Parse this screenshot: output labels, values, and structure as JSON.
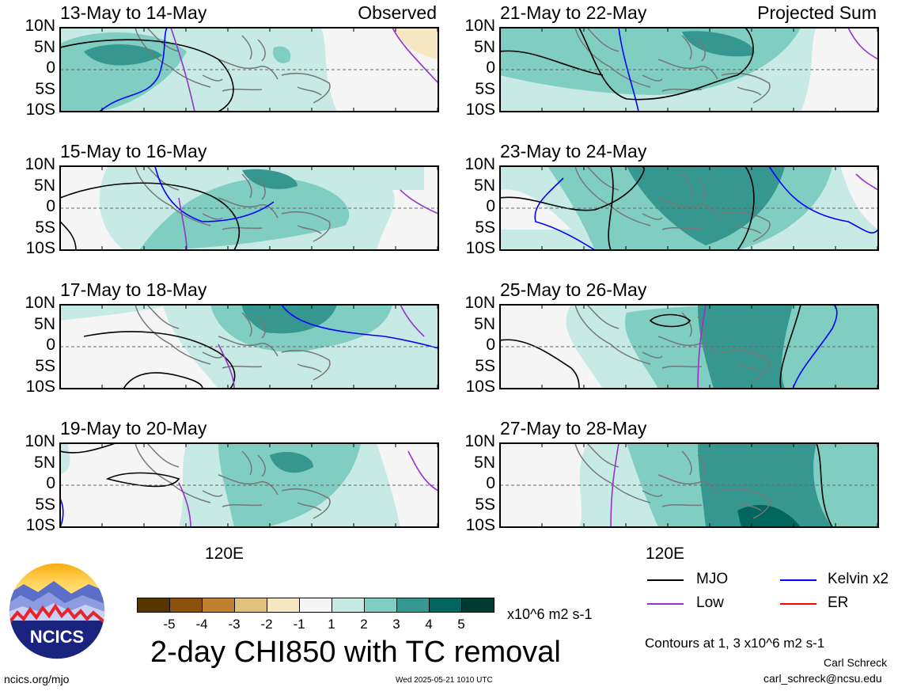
{
  "panels": [
    {
      "title": "13-May to 14-May",
      "tag": "Observed"
    },
    {
      "title": "21-May to 22-May",
      "tag": "Projected Sum"
    },
    {
      "title": "15-May to 16-May",
      "tag": ""
    },
    {
      "title": "23-May to 24-May",
      "tag": ""
    },
    {
      "title": "17-May to 18-May",
      "tag": ""
    },
    {
      "title": "25-May to 26-May",
      "tag": ""
    },
    {
      "title": "19-May to 20-May",
      "tag": ""
    },
    {
      "title": "27-May to 28-May",
      "tag": ""
    }
  ],
  "lat_labels": [
    "10N",
    "5N",
    "0",
    "5S",
    "10S"
  ],
  "lon_label": "120E",
  "colorbar": {
    "ticks": [
      "-5",
      "-4",
      "-3",
      "-2",
      "-1",
      "1",
      "2",
      "3",
      "4",
      "5"
    ],
    "colors": [
      "#553600",
      "#8c510a",
      "#bf812d",
      "#dfc27d",
      "#f6e8c3",
      "#f5f5f5",
      "#c7eae5",
      "#80cdc1",
      "#35978f",
      "#01665e",
      "#003c30"
    ],
    "units": "x10^6 m2 s-1"
  },
  "title": "2-day CHI850 with TC removal",
  "legend": [
    {
      "label": "MJO",
      "color": "#000000"
    },
    {
      "label": "Kelvin x2",
      "color": "#0000ff"
    },
    {
      "label": "Low",
      "color": "#9932cc"
    },
    {
      "label": "ER",
      "color": "#ff0000"
    }
  ],
  "contours_note": "Contours at 1, 3 x10^6 m2 s-1",
  "author": "Carl Schreck",
  "email": "carl_schreck@ncsu.edu",
  "website": "ncics.org/mjo",
  "timestamp": "Wed 2025-05-21 1010 UTC",
  "logo_text": "NCICS"
}
